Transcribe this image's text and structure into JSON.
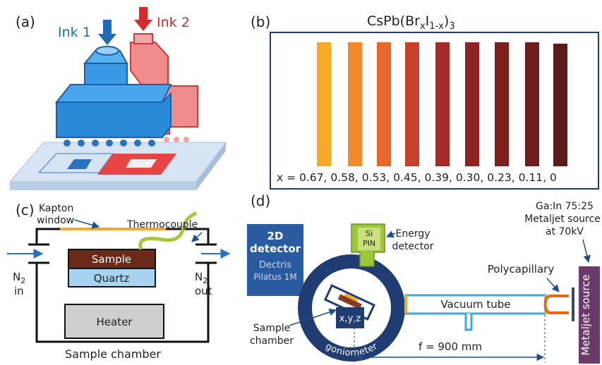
{
  "panel_a": {
    "label": "(a)",
    "ink_1": "Ink 1",
    "ink_2": "Ink 2"
  },
  "panel_b": {
    "label": "(b)",
    "title": {
      "base": "CsPb(Br",
      "sub_1": "x",
      "mid": "I",
      "sub_2": "1-x",
      "close": ")",
      "sub_3": "3"
    },
    "compositions": "x = 0.67, 0.58, 0.53, 0.45, 0.39, 0.30, 0.23, 0.11, 0"
  },
  "panel_c": {
    "label": "(c)",
    "kapton_window": [
      "Kapton",
      "window"
    ],
    "thermocouple": "Thermocouple",
    "n2_in": {
      "base": "N",
      "sub": "2",
      "text": "in"
    },
    "n2_out": {
      "base": "N",
      "sub": "2",
      "text": "out"
    },
    "sample": "Sample",
    "quartz": "Quartz",
    "heater": "Heater",
    "caption": "Sample chamber"
  },
  "panel_d": {
    "label": "(d)",
    "detector_2d": [
      "2D",
      "detector"
    ],
    "detector_model": [
      "Dectris",
      "Pilatus 1M"
    ],
    "si_pin": [
      "Si",
      "PIN"
    ],
    "energy_detector": [
      "Energy",
      "detector"
    ],
    "source_spec": [
      "Ga:In 75:25",
      "Metaljet source",
      "at 70kV"
    ],
    "polycapillary": "Polycapillary",
    "vacuum_tube": "Vacuum tube",
    "stage": "x,y,z",
    "sample_chamber": [
      "Sample",
      "chamber"
    ],
    "goniometer": "goniometer",
    "focal_length": "f = 900 mm",
    "metaljet_source": "Metaljet source"
  }
}
